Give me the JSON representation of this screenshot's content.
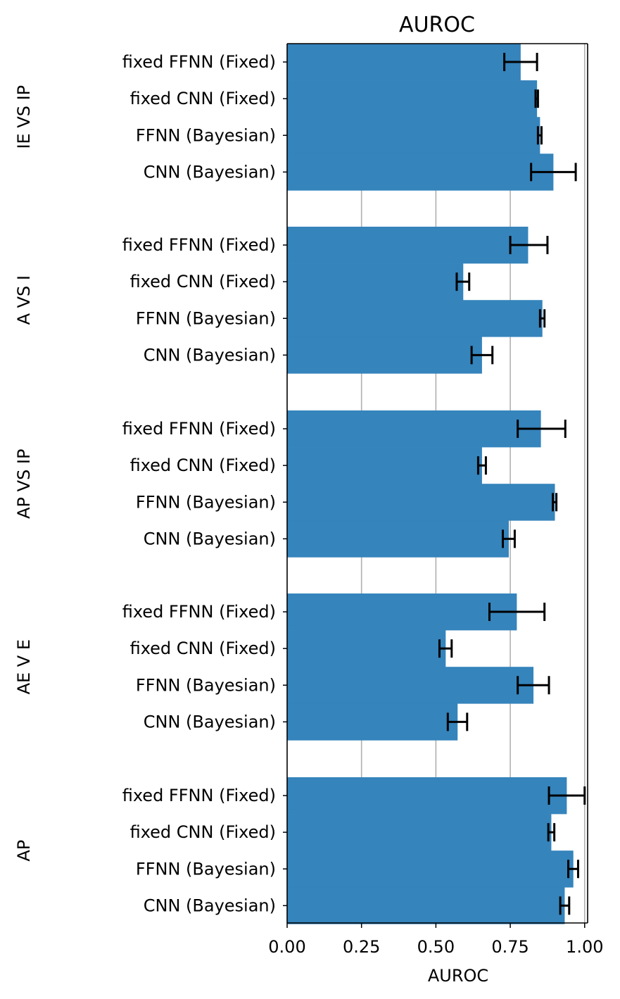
{
  "chart_data": {
    "type": "bar",
    "orientation": "horizontal",
    "title": "AUROC",
    "xlabel": "AUROC",
    "xlim": [
      0,
      1.01
    ],
    "xticks": [
      0.0,
      0.25,
      0.5,
      0.75,
      1.0
    ],
    "xtick_labels": [
      "0.00",
      "0.25",
      "0.50",
      "0.75",
      "1.00"
    ],
    "grid": "vertical",
    "legend": "none",
    "bar_color": "#3584bc",
    "error_bar_color": "#000000",
    "groups": [
      {
        "label": "IE VS IP",
        "bars": [
          {
            "label": "fixed FFNN (Fixed)",
            "value": 0.785,
            "err_low": 0.73,
            "err_high": 0.84
          },
          {
            "label": "fixed CNN (Fixed)",
            "value": 0.84,
            "err_low": 0.835,
            "err_high": 0.843
          },
          {
            "label": "FFNN (Bayesian)",
            "value": 0.85,
            "err_low": 0.843,
            "err_high": 0.855
          },
          {
            "label": "CNN (Bayesian)",
            "value": 0.895,
            "err_low": 0.82,
            "err_high": 0.97
          }
        ]
      },
      {
        "label": "A VS I",
        "bars": [
          {
            "label": "fixed FFNN (Fixed)",
            "value": 0.81,
            "err_low": 0.75,
            "err_high": 0.875
          },
          {
            "label": "fixed CNN (Fixed)",
            "value": 0.592,
            "err_low": 0.57,
            "err_high": 0.612
          },
          {
            "label": "FFNN (Bayesian)",
            "value": 0.858,
            "err_low": 0.85,
            "err_high": 0.865
          },
          {
            "label": "CNN (Bayesian)",
            "value": 0.655,
            "err_low": 0.62,
            "err_high": 0.69
          }
        ]
      },
      {
        "label": "AP VS IP",
        "bars": [
          {
            "label": "fixed FFNN (Fixed)",
            "value": 0.853,
            "err_low": 0.775,
            "err_high": 0.935
          },
          {
            "label": "fixed CNN (Fixed)",
            "value": 0.655,
            "err_low": 0.642,
            "err_high": 0.668
          },
          {
            "label": "FFNN (Bayesian)",
            "value": 0.9,
            "err_low": 0.893,
            "err_high": 0.905
          },
          {
            "label": "CNN (Bayesian)",
            "value": 0.745,
            "err_low": 0.725,
            "err_high": 0.765
          }
        ]
      },
      {
        "label": "AE V E",
        "bars": [
          {
            "label": "fixed FFNN (Fixed)",
            "value": 0.772,
            "err_low": 0.68,
            "err_high": 0.865
          },
          {
            "label": "fixed CNN (Fixed)",
            "value": 0.533,
            "err_low": 0.512,
            "err_high": 0.553
          },
          {
            "label": "FFNN (Bayesian)",
            "value": 0.828,
            "err_low": 0.775,
            "err_high": 0.88
          },
          {
            "label": "CNN (Bayesian)",
            "value": 0.573,
            "err_low": 0.54,
            "err_high": 0.605
          }
        ]
      },
      {
        "label": "AP",
        "bars": [
          {
            "label": "fixed FFNN (Fixed)",
            "value": 0.94,
            "err_low": 0.88,
            "err_high": 1.0
          },
          {
            "label": "fixed CNN (Fixed)",
            "value": 0.888,
            "err_low": 0.878,
            "err_high": 0.898
          },
          {
            "label": "FFNN (Bayesian)",
            "value": 0.962,
            "err_low": 0.945,
            "err_high": 0.978
          },
          {
            "label": "CNN (Bayesian)",
            "value": 0.933,
            "err_low": 0.918,
            "err_high": 0.948
          }
        ]
      }
    ]
  }
}
